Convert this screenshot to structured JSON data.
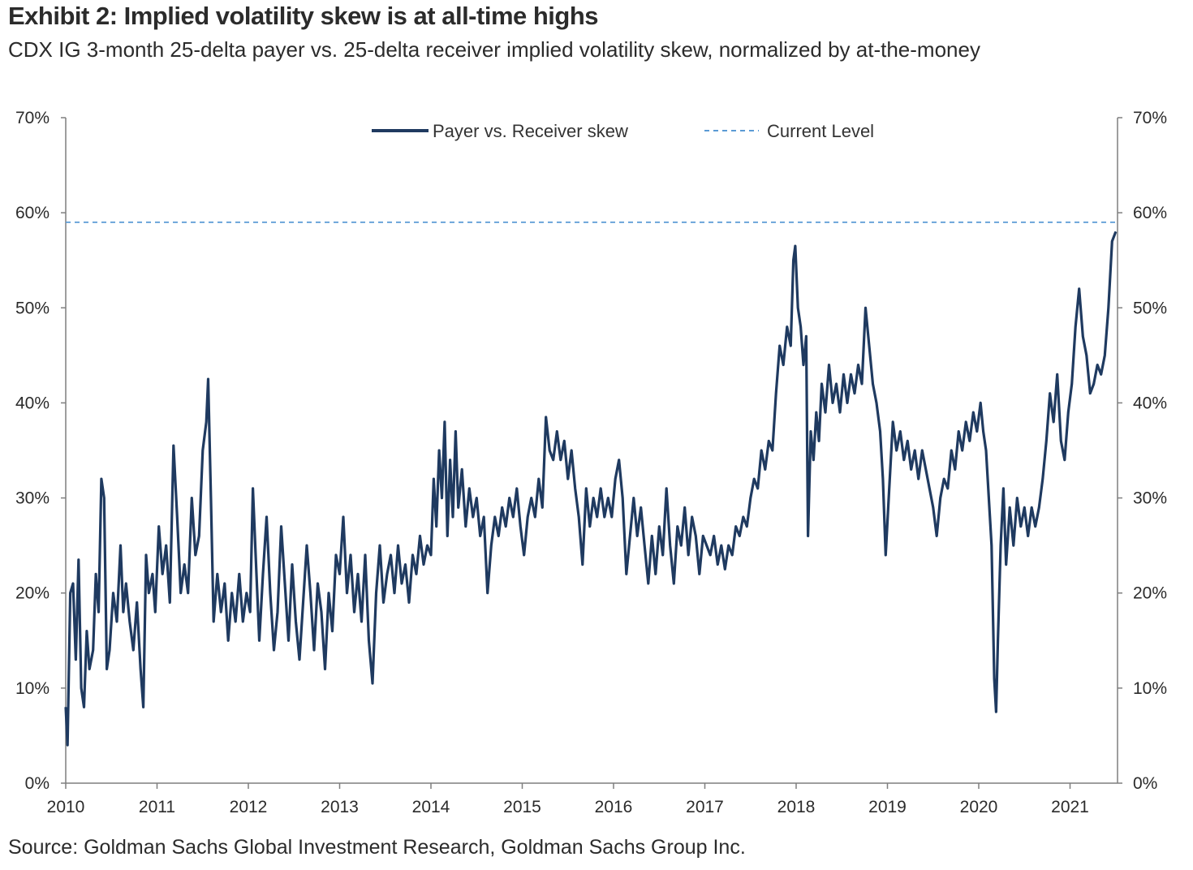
{
  "header": {
    "title": "Exhibit 2: Implied volatility skew is at all-time highs",
    "subtitle": "CDX IG 3-month 25-delta payer vs. 25-delta receiver implied volatility skew, normalized by at-the-money"
  },
  "footer": {
    "source": "Source: Goldman Sachs Global Investment Research, Goldman Sachs Group Inc."
  },
  "colors": {
    "series": "#1f3a60",
    "current_level": "#5b9bd5",
    "axis": "#7f7f7f"
  },
  "chart_data": {
    "type": "line",
    "title": "Exhibit 2: Implied volatility skew is at all-time highs",
    "xlabel": "",
    "ylabel": "",
    "xlim": [
      2010,
      2021.5
    ],
    "ylim": [
      0,
      70
    ],
    "x_ticks": [
      "2010",
      "2011",
      "2012",
      "2013",
      "2014",
      "2015",
      "2016",
      "2017",
      "2018",
      "2019",
      "2020",
      "2021"
    ],
    "y_ticks_left": [
      "0%",
      "10%",
      "20%",
      "30%",
      "40%",
      "50%",
      "60%",
      "70%"
    ],
    "y_ticks_right": [
      "0%",
      "10%",
      "20%",
      "30%",
      "40%",
      "50%",
      "60%",
      "70%"
    ],
    "legend_position": "top-center",
    "series": [
      {
        "name": "Payer vs. Receiver skew",
        "style": "solid",
        "points": [
          [
            2010.0,
            8
          ],
          [
            2010.02,
            4
          ],
          [
            2010.05,
            20
          ],
          [
            2010.08,
            21
          ],
          [
            2010.11,
            13
          ],
          [
            2010.14,
            23.5
          ],
          [
            2010.17,
            10
          ],
          [
            2010.2,
            8
          ],
          [
            2010.23,
            16
          ],
          [
            2010.26,
            12
          ],
          [
            2010.3,
            14
          ],
          [
            2010.33,
            22
          ],
          [
            2010.36,
            18
          ],
          [
            2010.39,
            32
          ],
          [
            2010.42,
            30
          ],
          [
            2010.45,
            12
          ],
          [
            2010.48,
            14
          ],
          [
            2010.52,
            20
          ],
          [
            2010.56,
            17
          ],
          [
            2010.6,
            25
          ],
          [
            2010.63,
            18
          ],
          [
            2010.66,
            21
          ],
          [
            2010.7,
            17
          ],
          [
            2010.74,
            14
          ],
          [
            2010.78,
            19
          ],
          [
            2010.82,
            12
          ],
          [
            2010.85,
            8
          ],
          [
            2010.88,
            24
          ],
          [
            2010.91,
            20
          ],
          [
            2010.95,
            22
          ],
          [
            2010.98,
            18
          ],
          [
            2011.02,
            27
          ],
          [
            2011.06,
            22
          ],
          [
            2011.1,
            25
          ],
          [
            2011.14,
            19
          ],
          [
            2011.18,
            35.5
          ],
          [
            2011.22,
            28
          ],
          [
            2011.26,
            20
          ],
          [
            2011.3,
            23
          ],
          [
            2011.34,
            20
          ],
          [
            2011.38,
            30
          ],
          [
            2011.42,
            24
          ],
          [
            2011.46,
            26
          ],
          [
            2011.5,
            35
          ],
          [
            2011.54,
            38
          ],
          [
            2011.56,
            42.5
          ],
          [
            2011.59,
            30
          ],
          [
            2011.62,
            17
          ],
          [
            2011.66,
            22
          ],
          [
            2011.7,
            18
          ],
          [
            2011.74,
            21
          ],
          [
            2011.78,
            15
          ],
          [
            2011.82,
            20
          ],
          [
            2011.86,
            17
          ],
          [
            2011.9,
            22
          ],
          [
            2011.94,
            17
          ],
          [
            2011.98,
            20
          ],
          [
            2012.02,
            18
          ],
          [
            2012.05,
            31
          ],
          [
            2012.08,
            24
          ],
          [
            2012.12,
            15
          ],
          [
            2012.16,
            22
          ],
          [
            2012.2,
            28
          ],
          [
            2012.24,
            20
          ],
          [
            2012.28,
            14
          ],
          [
            2012.32,
            18
          ],
          [
            2012.36,
            27
          ],
          [
            2012.4,
            21
          ],
          [
            2012.44,
            15
          ],
          [
            2012.48,
            23
          ],
          [
            2012.52,
            17
          ],
          [
            2012.56,
            13
          ],
          [
            2012.6,
            19
          ],
          [
            2012.64,
            25
          ],
          [
            2012.68,
            20
          ],
          [
            2012.72,
            14
          ],
          [
            2012.76,
            21
          ],
          [
            2012.8,
            18
          ],
          [
            2012.84,
            12
          ],
          [
            2012.88,
            20
          ],
          [
            2012.92,
            16
          ],
          [
            2012.96,
            24
          ],
          [
            2013.0,
            22
          ],
          [
            2013.04,
            28
          ],
          [
            2013.08,
            20
          ],
          [
            2013.12,
            24
          ],
          [
            2013.16,
            18
          ],
          [
            2013.2,
            22
          ],
          [
            2013.24,
            17
          ],
          [
            2013.28,
            24
          ],
          [
            2013.32,
            15
          ],
          [
            2013.36,
            10.5
          ],
          [
            2013.4,
            20
          ],
          [
            2013.44,
            25
          ],
          [
            2013.48,
            19
          ],
          [
            2013.52,
            22
          ],
          [
            2013.56,
            24
          ],
          [
            2013.6,
            20
          ],
          [
            2013.64,
            25
          ],
          [
            2013.68,
            21
          ],
          [
            2013.72,
            23
          ],
          [
            2013.76,
            19
          ],
          [
            2013.8,
            24
          ],
          [
            2013.84,
            22
          ],
          [
            2013.88,
            26
          ],
          [
            2013.92,
            23
          ],
          [
            2013.96,
            25
          ],
          [
            2014.0,
            24
          ],
          [
            2014.03,
            32
          ],
          [
            2014.06,
            27
          ],
          [
            2014.09,
            35
          ],
          [
            2014.12,
            30
          ],
          [
            2014.15,
            38
          ],
          [
            2014.18,
            26
          ],
          [
            2014.21,
            34
          ],
          [
            2014.24,
            28
          ],
          [
            2014.27,
            37
          ],
          [
            2014.3,
            29
          ],
          [
            2014.34,
            33
          ],
          [
            2014.38,
            27
          ],
          [
            2014.42,
            31
          ],
          [
            2014.46,
            28
          ],
          [
            2014.5,
            30
          ],
          [
            2014.54,
            26
          ],
          [
            2014.58,
            28
          ],
          [
            2014.62,
            20
          ],
          [
            2014.66,
            25
          ],
          [
            2014.7,
            28
          ],
          [
            2014.74,
            26
          ],
          [
            2014.78,
            29
          ],
          [
            2014.82,
            27
          ],
          [
            2014.86,
            30
          ],
          [
            2014.9,
            28
          ],
          [
            2014.94,
            31
          ],
          [
            2014.98,
            27
          ],
          [
            2015.02,
            24
          ],
          [
            2015.06,
            28
          ],
          [
            2015.1,
            30
          ],
          [
            2015.14,
            28
          ],
          [
            2015.18,
            32
          ],
          [
            2015.22,
            29
          ],
          [
            2015.26,
            38.5
          ],
          [
            2015.3,
            35
          ],
          [
            2015.34,
            34
          ],
          [
            2015.38,
            37
          ],
          [
            2015.42,
            34
          ],
          [
            2015.46,
            36
          ],
          [
            2015.5,
            32
          ],
          [
            2015.54,
            35
          ],
          [
            2015.58,
            31
          ],
          [
            2015.62,
            28
          ],
          [
            2015.66,
            23
          ],
          [
            2015.7,
            31
          ],
          [
            2015.74,
            27
          ],
          [
            2015.78,
            30
          ],
          [
            2015.82,
            28
          ],
          [
            2015.86,
            31
          ],
          [
            2015.9,
            28
          ],
          [
            2015.94,
            30
          ],
          [
            2015.98,
            28
          ],
          [
            2016.02,
            32
          ],
          [
            2016.06,
            34
          ],
          [
            2016.1,
            30
          ],
          [
            2016.14,
            22
          ],
          [
            2016.18,
            26
          ],
          [
            2016.22,
            30
          ],
          [
            2016.26,
            26
          ],
          [
            2016.3,
            29
          ],
          [
            2016.34,
            25
          ],
          [
            2016.38,
            21
          ],
          [
            2016.42,
            26
          ],
          [
            2016.46,
            22
          ],
          [
            2016.5,
            27
          ],
          [
            2016.54,
            24
          ],
          [
            2016.58,
            31
          ],
          [
            2016.62,
            25
          ],
          [
            2016.66,
            21
          ],
          [
            2016.7,
            27
          ],
          [
            2016.74,
            25
          ],
          [
            2016.78,
            29
          ],
          [
            2016.82,
            24
          ],
          [
            2016.86,
            28
          ],
          [
            2016.9,
            26
          ],
          [
            2016.94,
            22
          ],
          [
            2016.98,
            26
          ],
          [
            2017.02,
            25
          ],
          [
            2017.06,
            24
          ],
          [
            2017.1,
            26
          ],
          [
            2017.14,
            23
          ],
          [
            2017.18,
            25
          ],
          [
            2017.22,
            22.5
          ],
          [
            2017.26,
            25
          ],
          [
            2017.3,
            24
          ],
          [
            2017.34,
            27
          ],
          [
            2017.38,
            26
          ],
          [
            2017.42,
            28
          ],
          [
            2017.46,
            27
          ],
          [
            2017.5,
            30
          ],
          [
            2017.54,
            32
          ],
          [
            2017.58,
            31
          ],
          [
            2017.62,
            35
          ],
          [
            2017.66,
            33
          ],
          [
            2017.7,
            36
          ],
          [
            2017.74,
            35
          ],
          [
            2017.78,
            41
          ],
          [
            2017.82,
            46
          ],
          [
            2017.86,
            44
          ],
          [
            2017.9,
            48
          ],
          [
            2017.94,
            46
          ],
          [
            2017.97,
            55
          ],
          [
            2017.99,
            56.5
          ],
          [
            2018.02,
            50
          ],
          [
            2018.05,
            48
          ],
          [
            2018.08,
            44
          ],
          [
            2018.11,
            47
          ],
          [
            2018.13,
            26
          ],
          [
            2018.16,
            37
          ],
          [
            2018.19,
            34
          ],
          [
            2018.22,
            39
          ],
          [
            2018.25,
            36
          ],
          [
            2018.28,
            42
          ],
          [
            2018.32,
            39
          ],
          [
            2018.36,
            44
          ],
          [
            2018.4,
            40
          ],
          [
            2018.44,
            42
          ],
          [
            2018.48,
            39
          ],
          [
            2018.52,
            43
          ],
          [
            2018.56,
            40
          ],
          [
            2018.6,
            43
          ],
          [
            2018.64,
            41
          ],
          [
            2018.68,
            44
          ],
          [
            2018.72,
            42
          ],
          [
            2018.76,
            50
          ],
          [
            2018.8,
            46
          ],
          [
            2018.84,
            42
          ],
          [
            2018.88,
            40
          ],
          [
            2018.92,
            37
          ],
          [
            2018.95,
            32
          ],
          [
            2018.98,
            24
          ],
          [
            2019.02,
            31
          ],
          [
            2019.06,
            38
          ],
          [
            2019.1,
            35
          ],
          [
            2019.14,
            37
          ],
          [
            2019.18,
            34
          ],
          [
            2019.22,
            36
          ],
          [
            2019.26,
            33
          ],
          [
            2019.3,
            35
          ],
          [
            2019.34,
            32
          ],
          [
            2019.38,
            35
          ],
          [
            2019.42,
            33
          ],
          [
            2019.46,
            31
          ],
          [
            2019.5,
            29
          ],
          [
            2019.54,
            26
          ],
          [
            2019.58,
            30
          ],
          [
            2019.62,
            32
          ],
          [
            2019.66,
            31
          ],
          [
            2019.7,
            35
          ],
          [
            2019.74,
            33
          ],
          [
            2019.78,
            37
          ],
          [
            2019.82,
            35
          ],
          [
            2019.86,
            38
          ],
          [
            2019.9,
            36
          ],
          [
            2019.94,
            39
          ],
          [
            2019.98,
            37
          ],
          [
            2020.02,
            40
          ],
          [
            2020.05,
            37
          ],
          [
            2020.08,
            35
          ],
          [
            2020.11,
            30
          ],
          [
            2020.14,
            25
          ],
          [
            2020.17,
            11
          ],
          [
            2020.19,
            7.5
          ],
          [
            2020.21,
            15
          ],
          [
            2020.24,
            25
          ],
          [
            2020.27,
            31
          ],
          [
            2020.3,
            23
          ],
          [
            2020.34,
            29
          ],
          [
            2020.38,
            25
          ],
          [
            2020.42,
            30
          ],
          [
            2020.46,
            27
          ],
          [
            2020.5,
            29
          ],
          [
            2020.54,
            26
          ],
          [
            2020.58,
            29
          ],
          [
            2020.62,
            27
          ],
          [
            2020.66,
            29
          ],
          [
            2020.7,
            32
          ],
          [
            2020.74,
            36
          ],
          [
            2020.78,
            41
          ],
          [
            2020.82,
            38
          ],
          [
            2020.86,
            43
          ],
          [
            2020.9,
            36
          ],
          [
            2020.94,
            34
          ],
          [
            2020.98,
            39
          ],
          [
            2021.02,
            42
          ],
          [
            2021.06,
            48
          ],
          [
            2021.1,
            52
          ],
          [
            2021.14,
            47
          ],
          [
            2021.18,
            45
          ],
          [
            2021.22,
            41
          ],
          [
            2021.26,
            42
          ],
          [
            2021.3,
            44
          ],
          [
            2021.34,
            43
          ],
          [
            2021.38,
            45
          ],
          [
            2021.42,
            50
          ],
          [
            2021.46,
            57
          ],
          [
            2021.5,
            58
          ]
        ]
      },
      {
        "name": "Current Level",
        "style": "dashed",
        "value": 59
      }
    ]
  }
}
